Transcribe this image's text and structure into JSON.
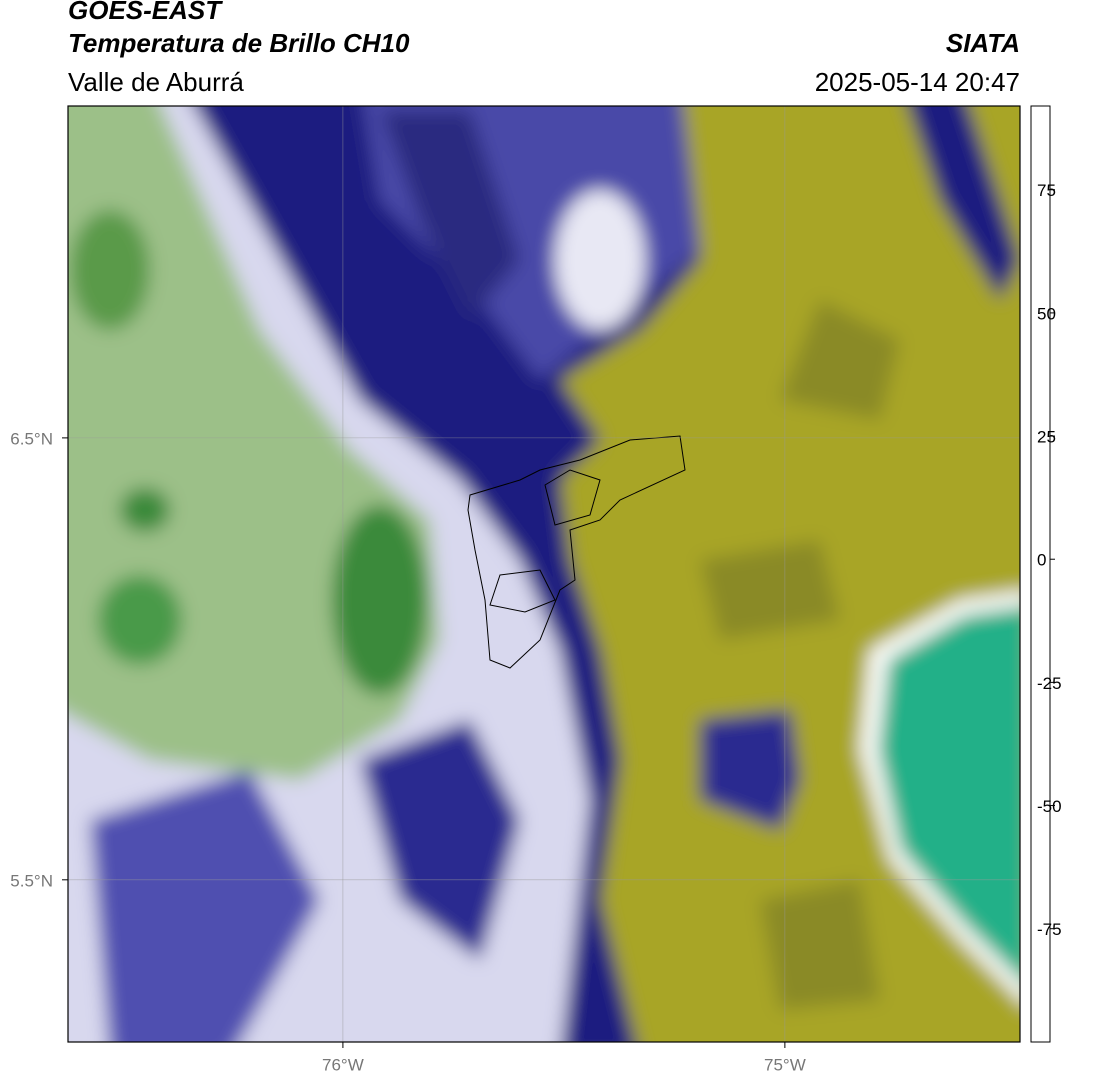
{
  "header": {
    "title": "GOES-EAST",
    "subtitle": "Temperatura de Brillo CH10",
    "region": "Valle de Aburrá",
    "source": "SIATA",
    "datetime": "2025-05-14 20:47"
  },
  "map": {
    "xlim": [
      -76.622,
      -74.468
    ],
    "ylim": [
      5.133,
      7.251
    ],
    "xticks": [
      {
        "value": -76,
        "label": "76°W"
      },
      {
        "value": -75,
        "label": "75°W"
      }
    ],
    "yticks": [
      {
        "value": 6.5,
        "label": "6.5°N"
      },
      {
        "value": 5.5,
        "label": "5.5°N"
      }
    ],
    "grid": true
  },
  "colorbar": {
    "lim": [
      -98,
      92
    ],
    "ticks": [
      75,
      50,
      25,
      0,
      -25,
      -50,
      -75
    ],
    "stops": [
      {
        "value": -98,
        "color": "#ffffff"
      },
      {
        "value": -93,
        "color": "#ffffff"
      },
      {
        "value": -93,
        "color": "#00e8d8"
      },
      {
        "value": -80,
        "color": "#20b090"
      },
      {
        "value": -65,
        "color": "#3a8a2a"
      },
      {
        "value": -55,
        "color": "#c8dcc0"
      },
      {
        "value": -50,
        "color": "#ffffff"
      },
      {
        "value": -42,
        "color": "#a0a0d8"
      },
      {
        "value": -28,
        "color": "#000080"
      },
      {
        "value": -24,
        "color": "#404040"
      },
      {
        "value": -20,
        "color": "#8a8a20"
      },
      {
        "value": -14,
        "color": "#c8c020"
      },
      {
        "value": -8,
        "color": "#ffff00"
      },
      {
        "value": 0,
        "color": "#ff8000"
      },
      {
        "value": 8,
        "color": "#ff0000"
      },
      {
        "value": 8,
        "color": "#000000"
      },
      {
        "value": 92,
        "color": "#000000"
      }
    ]
  }
}
